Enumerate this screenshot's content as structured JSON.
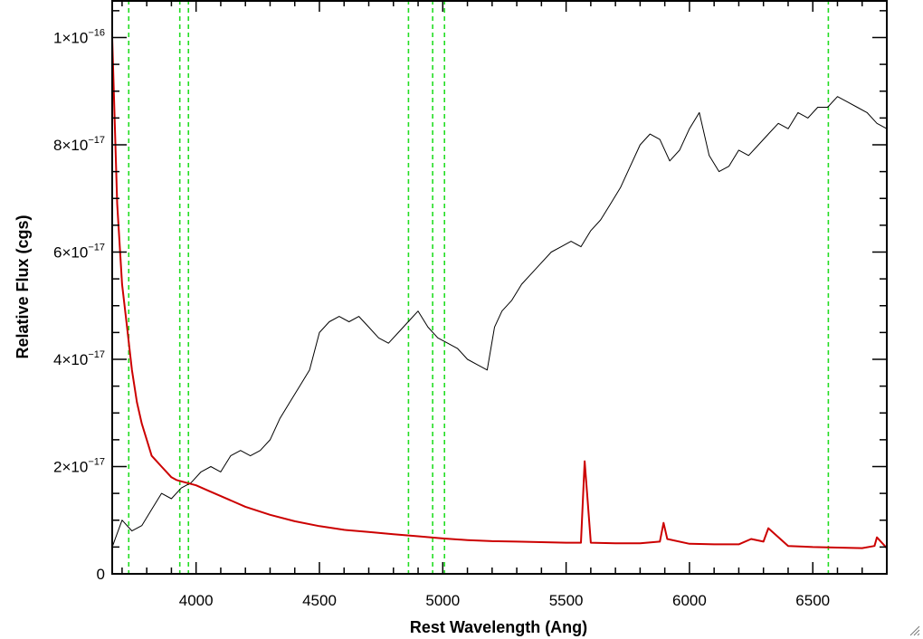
{
  "chart_data": {
    "type": "line",
    "title": "",
    "xlabel": "Rest Wavelength (Ang)",
    "ylabel": "Relative Flux (cgs)",
    "xlim": [
      3660,
      6800
    ],
    "ylim": [
      0,
      1.07e-16
    ],
    "x_ticks": [
      {
        "value": 4000,
        "label": "4000"
      },
      {
        "value": 4500,
        "label": "4500"
      },
      {
        "value": 5000,
        "label": "5000"
      },
      {
        "value": 5500,
        "label": "5500"
      },
      {
        "value": 6000,
        "label": "6000"
      },
      {
        "value": 6500,
        "label": "6500"
      }
    ],
    "y_ticks": [
      {
        "value": 0,
        "mantissa": "0",
        "exponent": ""
      },
      {
        "value": 2e-17,
        "mantissa": "2×10",
        "exponent": "−17"
      },
      {
        "value": 4e-17,
        "mantissa": "4×10",
        "exponent": "−17"
      },
      {
        "value": 6e-17,
        "mantissa": "6×10",
        "exponent": "−17"
      },
      {
        "value": 8e-17,
        "mantissa": "8×10",
        "exponent": "−17"
      },
      {
        "value": 1e-16,
        "mantissa": "1×10",
        "exponent": "−16"
      }
    ],
    "grid": false,
    "reference_lines_x": [
      3727,
      3934,
      3969,
      4861,
      4959,
      5007,
      6563
    ],
    "series": [
      {
        "color": "#000000",
        "x": [
          3660,
          3700,
          3740,
          3780,
          3820,
          3860,
          3900,
          3940,
          3980,
          4020,
          4060,
          4100,
          4140,
          4180,
          4220,
          4260,
          4300,
          4340,
          4380,
          4420,
          4460,
          4500,
          4540,
          4580,
          4620,
          4660,
          4700,
          4740,
          4780,
          4820,
          4860,
          4900,
          4940,
          4980,
          5020,
          5060,
          5100,
          5140,
          5180,
          5210,
          5240,
          5280,
          5320,
          5360,
          5400,
          5440,
          5480,
          5520,
          5560,
          5600,
          5640,
          5680,
          5720,
          5760,
          5800,
          5840,
          5880,
          5920,
          5960,
          6000,
          6040,
          6080,
          6120,
          6160,
          6200,
          6240,
          6280,
          6320,
          6360,
          6400,
          6440,
          6480,
          6520,
          6560,
          6600,
          6640,
          6680,
          6720,
          6760,
          6800
        ],
        "values": [
          5e-18,
          1e-17,
          8e-18,
          9e-18,
          1.2e-17,
          1.5e-17,
          1.4e-17,
          1.6e-17,
          1.7e-17,
          1.9e-17,
          2e-17,
          1.9e-17,
          2.2e-17,
          2.3e-17,
          2.2e-17,
          2.3e-17,
          2.5e-17,
          2.9e-17,
          3.2e-17,
          3.5e-17,
          3.8e-17,
          4.5e-17,
          4.7e-17,
          4.8e-17,
          4.7e-17,
          4.8e-17,
          4.6e-17,
          4.4e-17,
          4.3e-17,
          4.5e-17,
          4.7e-17,
          4.9e-17,
          4.6e-17,
          4.4e-17,
          4.3e-17,
          4.2e-17,
          4e-17,
          3.9e-17,
          3.8e-17,
          4.6e-17,
          4.9e-17,
          5.1e-17,
          5.4e-17,
          5.6e-17,
          5.8e-17,
          6e-17,
          6.1e-17,
          6.2e-17,
          6.1e-17,
          6.4e-17,
          6.6e-17,
          6.9e-17,
          7.2e-17,
          7.6e-17,
          8e-17,
          8.2e-17,
          8.1e-17,
          7.7e-17,
          7.9e-17,
          8.3e-17,
          8.6e-17,
          7.8e-17,
          7.5e-17,
          7.6e-17,
          7.9e-17,
          7.8e-17,
          8e-17,
          8.2e-17,
          8.4e-17,
          8.3e-17,
          8.6e-17,
          8.5e-17,
          8.7e-17,
          8.7e-17,
          8.9e-17,
          8.8e-17,
          8.7e-17,
          8.6e-17,
          8.4e-17,
          8.3e-17
        ]
      },
      {
        "color": "#cc0000",
        "x": [
          3660,
          3680,
          3700,
          3720,
          3740,
          3760,
          3780,
          3800,
          3820,
          3840,
          3860,
          3880,
          3900,
          3920,
          3960,
          4000,
          4050,
          4100,
          4150,
          4200,
          4300,
          4400,
          4500,
          4600,
          4700,
          4800,
          4900,
          5000,
          5100,
          5200,
          5300,
          5400,
          5500,
          5560,
          5575,
          5585,
          5600,
          5700,
          5800,
          5880,
          5895,
          5910,
          6000,
          6100,
          6200,
          6250,
          6300,
          6320,
          6400,
          6500,
          6600,
          6700,
          6750,
          6760,
          6800
        ],
        "values": [
          1e-16,
          6.9e-17,
          5.4e-17,
          4.6e-17,
          3.8e-17,
          3.2e-17,
          2.8e-17,
          2.5e-17,
          2.2e-17,
          2.1e-17,
          2e-17,
          1.9e-17,
          1.8e-17,
          1.75e-17,
          1.7e-17,
          1.65e-17,
          1.55e-17,
          1.45e-17,
          1.35e-17,
          1.25e-17,
          1.1e-17,
          9.8e-18,
          8.9e-18,
          8.2e-18,
          7.8e-18,
          7.4e-18,
          7e-18,
          6.6e-18,
          6.3e-18,
          6.1e-18,
          6e-18,
          5.9e-18,
          5.8e-18,
          5.8e-18,
          2.1e-17,
          1.5e-17,
          5.8e-18,
          5.7e-18,
          5.7e-18,
          6e-18,
          9.5e-18,
          6.5e-18,
          5.6e-18,
          5.5e-18,
          5.5e-18,
          6.5e-18,
          6e-18,
          8.5e-18,
          5.2e-18,
          5e-18,
          4.9e-18,
          4.8e-18,
          5.2e-18,
          6.8e-18,
          4.8e-18
        ]
      }
    ]
  }
}
